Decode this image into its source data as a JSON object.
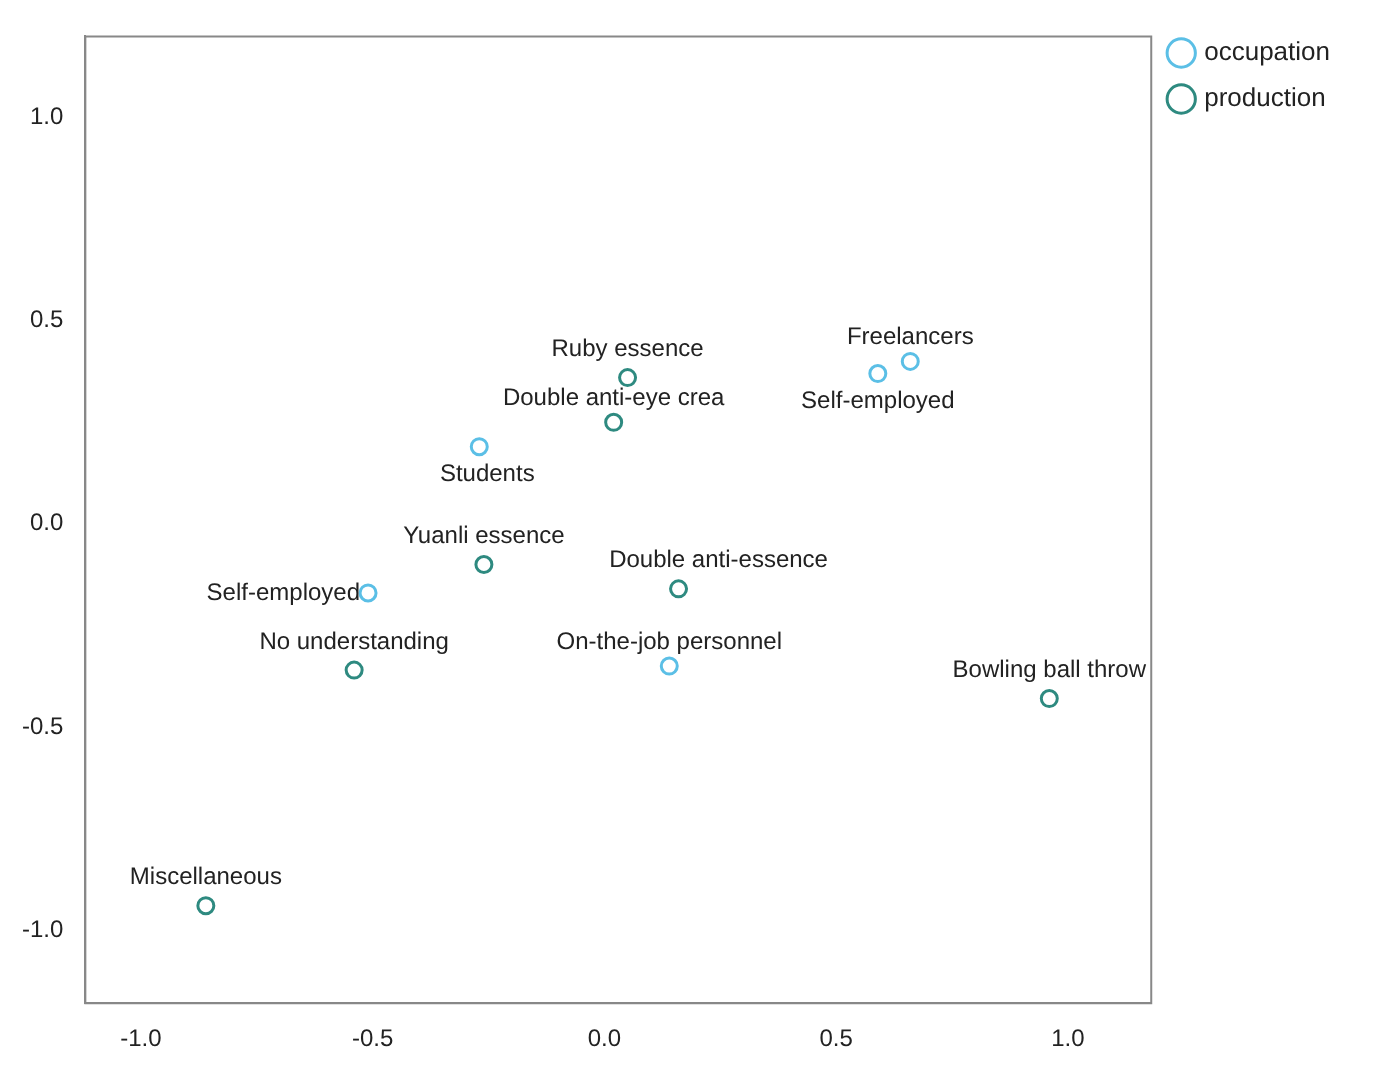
{
  "chart_data": {
    "type": "scatter",
    "xlim": [
      -1.12,
      1.18
    ],
    "ylim": [
      -1.18,
      1.2
    ],
    "xticks": [
      {
        "value": -1,
        "label": "-1.0"
      },
      {
        "value": -0.5,
        "label": "-0.5"
      },
      {
        "value": 0,
        "label": "0.0"
      },
      {
        "value": 0.5,
        "label": "0.5"
      },
      {
        "value": 1,
        "label": "1.0"
      }
    ],
    "yticks": [
      {
        "value": -1,
        "label": "-1.0"
      },
      {
        "value": -0.5,
        "label": "-0.5"
      },
      {
        "value": 0,
        "label": "0.0"
      },
      {
        "value": 0.5,
        "label": "0.5"
      },
      {
        "value": 1,
        "label": "1.0"
      }
    ],
    "grid": false,
    "legend": "top right",
    "marker": "circle",
    "series": [
      {
        "name": "occupation",
        "color": "#5bbfe6",
        "x": [
          0.66,
          0.59,
          -0.27,
          -0.51,
          0.14
        ],
        "values": [
          0.4,
          0.37,
          0.19,
          -0.17,
          -0.35
        ]
      },
      {
        "name": "production",
        "color": "#2e8a80",
        "x": [
          0.05,
          0.02,
          -0.26,
          0.16,
          -0.54,
          0.96,
          -0.86
        ],
        "values": [
          0.36,
          0.25,
          -0.1,
          -0.16,
          -0.36,
          -0.43,
          -0.94
        ]
      }
    ],
    "annotations": [
      {
        "text": "Freelancers",
        "x": 0.66,
        "y": 0.4
      },
      {
        "text": "Self-employed",
        "x": 0.59,
        "y": 0.37
      },
      {
        "text": "Students",
        "x": -0.27,
        "y": 0.19
      },
      {
        "text": "Self-employed",
        "x": -0.51,
        "y": -0.17
      },
      {
        "text": "On-the-job personnel",
        "x": 0.14,
        "y": -0.35
      },
      {
        "text": "Ruby essence",
        "x": 0.05,
        "y": 0.36
      },
      {
        "text": "Double anti-eye crea",
        "x": 0.02,
        "y": 0.25
      },
      {
        "text": "Yuanli essence",
        "x": -0.26,
        "y": -0.1
      },
      {
        "text": "Double anti-essence",
        "x": 0.16,
        "y": -0.16
      },
      {
        "text": "No understanding",
        "x": -0.54,
        "y": -0.36
      },
      {
        "text": "Bowling ball throw",
        "x": 0.96,
        "y": -0.43
      },
      {
        "text": "Miscellaneous",
        "x": -0.86,
        "y": -0.94
      }
    ]
  }
}
